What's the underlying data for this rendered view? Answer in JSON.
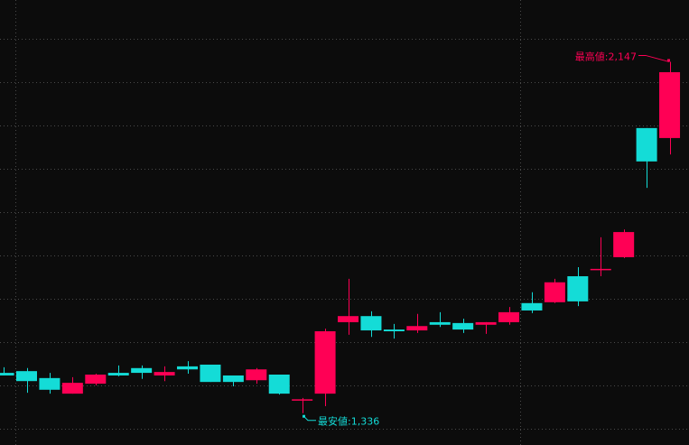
{
  "chart_data": {
    "type": "candlestick",
    "title": "",
    "xlabel": "",
    "ylabel": "",
    "ylim": [
      1300,
      2200
    ],
    "grid": true,
    "colors": {
      "background": "#0c0c0c",
      "up": "#ff0055",
      "down": "#14dcd7",
      "grid": "#4a4a4a"
    },
    "candles": [
      {
        "o": 1429,
        "h": 1442,
        "l": 1423,
        "c": 1423
      },
      {
        "o": 1433,
        "h": 1440,
        "l": 1383,
        "c": 1410
      },
      {
        "o": 1417,
        "h": 1429,
        "l": 1381,
        "c": 1390
      },
      {
        "o": 1381,
        "h": 1419,
        "l": 1381,
        "c": 1406
      },
      {
        "o": 1404,
        "h": 1427,
        "l": 1400,
        "c": 1425
      },
      {
        "o": 1429,
        "h": 1446,
        "l": 1421,
        "c": 1423
      },
      {
        "o": 1440,
        "h": 1446,
        "l": 1415,
        "c": 1429
      },
      {
        "o": 1423,
        "h": 1444,
        "l": 1410,
        "c": 1431
      },
      {
        "o": 1444,
        "h": 1456,
        "l": 1427,
        "c": 1437
      },
      {
        "o": 1448,
        "h": 1448,
        "l": 1408,
        "c": 1408
      },
      {
        "o": 1423,
        "h": 1423,
        "l": 1398,
        "c": 1408
      },
      {
        "o": 1412,
        "h": 1440,
        "l": 1404,
        "c": 1437
      },
      {
        "o": 1425,
        "h": 1425,
        "l": 1379,
        "c": 1381
      },
      {
        "o": 1367,
        "h": 1371,
        "l": 1336,
        "c": 1368
      },
      {
        "o": 1381,
        "h": 1531,
        "l": 1352,
        "c": 1525
      },
      {
        "o": 1546,
        "h": 1646,
        "l": 1517,
        "c": 1560
      },
      {
        "o": 1560,
        "h": 1571,
        "l": 1512,
        "c": 1527
      },
      {
        "o": 1529,
        "h": 1542,
        "l": 1508,
        "c": 1525
      },
      {
        "o": 1527,
        "h": 1565,
        "l": 1521,
        "c": 1537
      },
      {
        "o": 1546,
        "h": 1569,
        "l": 1535,
        "c": 1540
      },
      {
        "o": 1544,
        "h": 1554,
        "l": 1521,
        "c": 1529
      },
      {
        "o": 1540,
        "h": 1546,
        "l": 1519,
        "c": 1546
      },
      {
        "o": 1546,
        "h": 1581,
        "l": 1540,
        "c": 1569
      },
      {
        "o": 1590,
        "h": 1615,
        "l": 1567,
        "c": 1573
      },
      {
        "o": 1592,
        "h": 1646,
        "l": 1590,
        "c": 1638
      },
      {
        "o": 1652,
        "h": 1673,
        "l": 1583,
        "c": 1594
      },
      {
        "o": 1667,
        "h": 1742,
        "l": 1652,
        "c": 1669
      },
      {
        "o": 1696,
        "h": 1760,
        "l": 1694,
        "c": 1754
      },
      {
        "o": 1994,
        "h": 1994,
        "l": 1856,
        "c": 1917
      },
      {
        "o": 1971,
        "h": 2147,
        "l": 1933,
        "c": 2123
      }
    ],
    "annotations": {
      "high_label": "最高値:2,147",
      "low_label": "最安値:1,336"
    }
  }
}
